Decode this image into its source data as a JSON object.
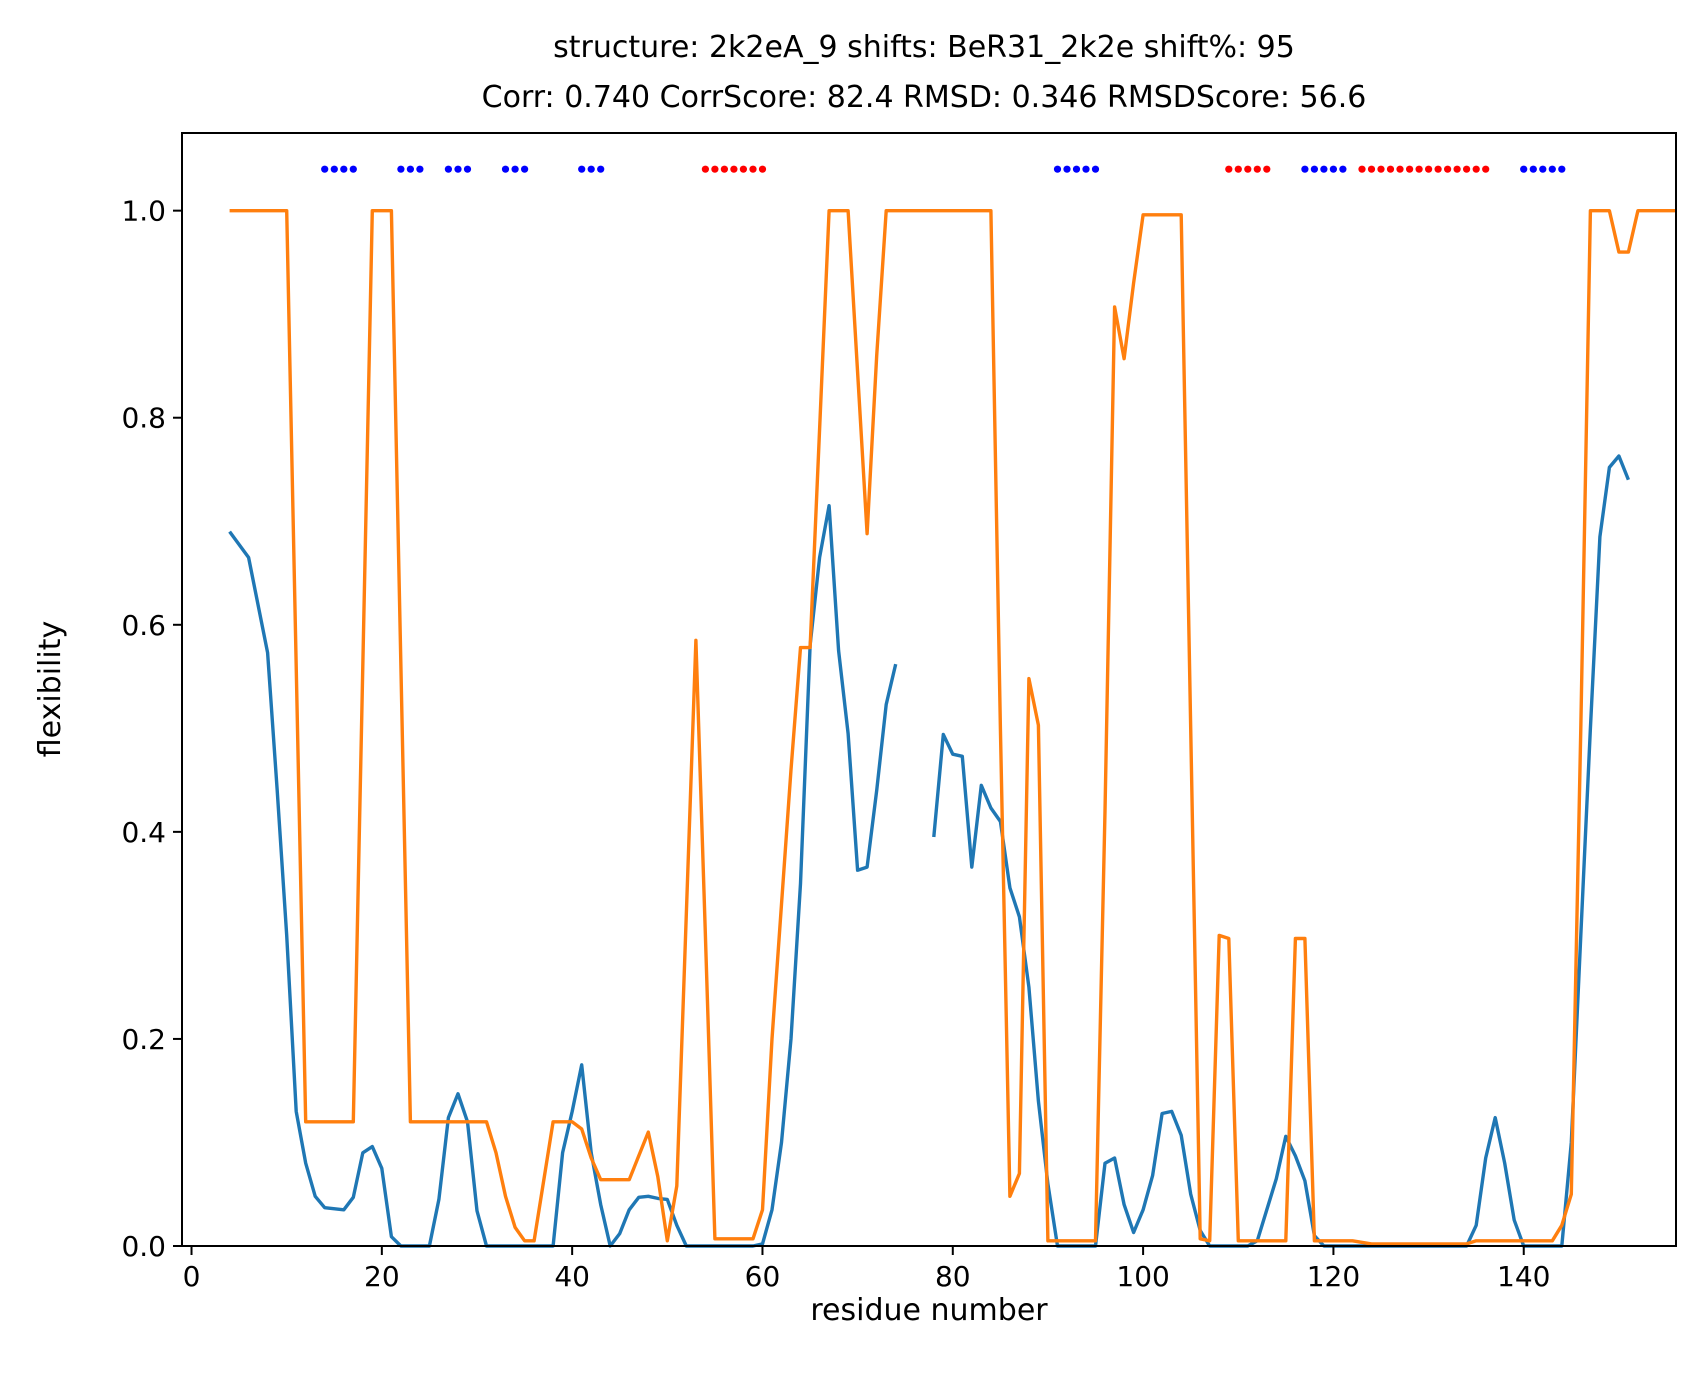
{
  "chart_data": {
    "type": "line",
    "title_line1": "structure: 2k2eA_9 shifts: BeR31_2k2e shift%: 95",
    "title_line2": "Corr: 0.740 CorrScore: 82.4 RMSD: 0.346 RMSDScore: 56.6",
    "xlabel": "residue number",
    "ylabel": "flexibility",
    "xlim": [
      -1,
      156
    ],
    "ylim": [
      0,
      1.075
    ],
    "xticks": [
      0,
      20,
      40,
      60,
      80,
      100,
      120,
      140
    ],
    "xtick_labels": [
      "0",
      "20",
      "40",
      "60",
      "80",
      "100",
      "120",
      "140"
    ],
    "yticks": [
      0,
      0.2,
      0.4,
      0.6,
      0.8,
      1.0
    ],
    "ytick_labels": [
      "0.0",
      "0.2",
      "0.4",
      "0.6",
      "0.8",
      "1.0"
    ],
    "grid": false,
    "series": [
      {
        "color": "#1f77b4",
        "segments": [
          [
            [
              4,
              0.69
            ],
            [
              6,
              0.665
            ],
            [
              8,
              0.573
            ],
            [
              9,
              0.44
            ],
            [
              10,
              0.3
            ],
            [
              11,
              0.13
            ],
            [
              12,
              0.08
            ],
            [
              13,
              0.048
            ],
            [
              14,
              0.037
            ],
            [
              16,
              0.035
            ],
            [
              17,
              0.047
            ],
            [
              18,
              0.09
            ],
            [
              19,
              0.096
            ],
            [
              20,
              0.075
            ],
            [
              21,
              0.009
            ],
            [
              22,
              0.0
            ],
            [
              25,
              0.0
            ],
            [
              26,
              0.045
            ],
            [
              27,
              0.124
            ],
            [
              28,
              0.147
            ],
            [
              29,
              0.12
            ],
            [
              30,
              0.034
            ],
            [
              31,
              0.0
            ],
            [
              38,
              0.0
            ],
            [
              39,
              0.09
            ],
            [
              40,
              0.13
            ],
            [
              41,
              0.175
            ],
            [
              42,
              0.09
            ],
            [
              43,
              0.04
            ],
            [
              44,
              0.0
            ],
            [
              45,
              0.012
            ],
            [
              46,
              0.035
            ],
            [
              47,
              0.047
            ],
            [
              48,
              0.048
            ],
            [
              49,
              0.046
            ],
            [
              50,
              0.045
            ],
            [
              51,
              0.02
            ],
            [
              52,
              0.0
            ],
            [
              59,
              0.0
            ],
            [
              60,
              0.002
            ],
            [
              61,
              0.035
            ],
            [
              62,
              0.1
            ],
            [
              63,
              0.2
            ],
            [
              64,
              0.35
            ],
            [
              65,
              0.58
            ],
            [
              66,
              0.665
            ],
            [
              67,
              0.715
            ],
            [
              68,
              0.575
            ],
            [
              69,
              0.495
            ],
            [
              70,
              0.363
            ],
            [
              71,
              0.366
            ],
            [
              72,
              0.44
            ],
            [
              73,
              0.523
            ],
            [
              74,
              0.562
            ]
          ],
          [
            [
              78,
              0.395
            ],
            [
              79,
              0.494
            ],
            [
              80,
              0.475
            ],
            [
              81,
              0.473
            ],
            [
              82,
              0.366
            ],
            [
              83,
              0.445
            ],
            [
              84,
              0.423
            ],
            [
              85,
              0.41
            ],
            [
              86,
              0.346
            ],
            [
              87,
              0.318
            ],
            [
              88,
              0.25
            ],
            [
              89,
              0.14
            ],
            [
              90,
              0.06
            ],
            [
              91,
              0.0
            ],
            [
              95,
              0.0
            ],
            [
              96,
              0.08
            ],
            [
              97,
              0.085
            ],
            [
              98,
              0.04
            ],
            [
              99,
              0.013
            ],
            [
              100,
              0.035
            ],
            [
              101,
              0.068
            ],
            [
              102,
              0.128
            ],
            [
              103,
              0.13
            ],
            [
              104,
              0.107
            ],
            [
              105,
              0.05
            ],
            [
              106,
              0.015
            ],
            [
              107,
              0.0
            ],
            [
              111,
              0.0
            ],
            [
              112,
              0.005
            ],
            [
              113,
              0.035
            ],
            [
              114,
              0.065
            ],
            [
              115,
              0.106
            ],
            [
              116,
              0.087
            ],
            [
              117,
              0.063
            ],
            [
              118,
              0.01
            ],
            [
              119,
              0.0
            ],
            [
              134,
              0.0
            ],
            [
              135,
              0.02
            ],
            [
              136,
              0.085
            ],
            [
              137,
              0.124
            ],
            [
              138,
              0.08
            ],
            [
              139,
              0.025
            ],
            [
              140,
              0.0
            ],
            [
              144,
              0.0
            ],
            [
              145,
              0.1
            ],
            [
              146,
              0.3
            ],
            [
              147,
              0.5
            ],
            [
              148,
              0.685
            ],
            [
              149,
              0.752
            ],
            [
              150,
              0.763
            ],
            [
              151,
              0.74
            ]
          ]
        ]
      },
      {
        "color": "#ff7f0e",
        "segments": [
          [
            [
              4,
              1.0
            ],
            [
              10,
              1.0
            ],
            [
              12,
              0.12
            ],
            [
              17,
              0.12
            ],
            [
              19,
              1.0
            ],
            [
              21,
              1.0
            ],
            [
              23,
              0.12
            ],
            [
              31,
              0.12
            ],
            [
              32,
              0.09
            ],
            [
              33,
              0.048
            ],
            [
              34,
              0.018
            ],
            [
              35,
              0.005
            ],
            [
              36,
              0.005
            ],
            [
              38,
              0.12
            ],
            [
              40,
              0.12
            ],
            [
              41,
              0.113
            ],
            [
              42,
              0.085
            ],
            [
              43,
              0.064
            ],
            [
              46,
              0.064
            ],
            [
              48,
              0.11
            ],
            [
              49,
              0.067
            ],
            [
              50,
              0.005
            ],
            [
              51,
              0.058
            ],
            [
              52,
              0.32
            ],
            [
              53,
              0.585
            ],
            [
              54,
              0.3
            ],
            [
              55,
              0.007
            ],
            [
              59,
              0.007
            ],
            [
              60,
              0.035
            ],
            [
              61,
              0.2
            ],
            [
              62,
              0.33
            ],
            [
              63,
              0.46
            ],
            [
              64,
              0.578
            ],
            [
              65,
              0.578
            ],
            [
              67,
              1.0
            ],
            [
              69,
              1.0
            ],
            [
              71,
              0.688
            ],
            [
              72,
              0.86
            ],
            [
              73,
              1.0
            ],
            [
              84,
              1.0
            ],
            [
              85,
              0.5
            ],
            [
              86,
              0.048
            ],
            [
              87,
              0.07
            ],
            [
              88,
              0.548
            ],
            [
              89,
              0.503
            ],
            [
              90,
              0.005
            ],
            [
              95,
              0.005
            ],
            [
              96,
              0.42
            ],
            [
              97,
              0.907
            ],
            [
              98,
              0.857
            ],
            [
              99,
              0.93
            ],
            [
              100,
              0.996
            ],
            [
              104,
              0.996
            ],
            [
              105,
              0.5
            ],
            [
              106,
              0.007
            ],
            [
              107,
              0.005
            ],
            [
              108,
              0.3
            ],
            [
              109,
              0.297
            ],
            [
              110,
              0.005
            ],
            [
              115,
              0.005
            ],
            [
              116,
              0.297
            ],
            [
              117,
              0.297
            ],
            [
              118,
              0.005
            ],
            [
              122,
              0.005
            ],
            [
              124,
              0.002
            ],
            [
              134,
              0.002
            ],
            [
              135,
              0.005
            ],
            [
              143,
              0.005
            ],
            [
              144,
              0.02
            ],
            [
              145,
              0.05
            ],
            [
              146,
              0.5
            ],
            [
              147,
              1.0
            ],
            [
              149,
              1.0
            ],
            [
              150,
              0.96
            ],
            [
              151,
              0.96
            ],
            [
              152,
              1.0
            ],
            [
              156,
              1.0
            ]
          ]
        ]
      }
    ],
    "markers": {
      "y": 1.04,
      "blue": {
        "color": "#0000ff",
        "x": [
          14,
          15,
          16,
          17,
          22,
          23,
          24,
          27,
          28,
          29,
          33,
          34,
          35,
          41,
          42,
          43,
          91,
          92,
          93,
          94,
          95,
          117,
          118,
          119,
          120,
          121,
          140,
          141,
          142,
          143,
          144
        ]
      },
      "red": {
        "color": "#ff0000",
        "x": [
          54,
          55,
          56,
          57,
          58,
          59,
          60,
          109,
          110,
          111,
          112,
          113,
          123,
          124,
          125,
          126,
          127,
          128,
          129,
          130,
          131,
          132,
          133,
          134,
          135,
          136
        ]
      }
    }
  }
}
